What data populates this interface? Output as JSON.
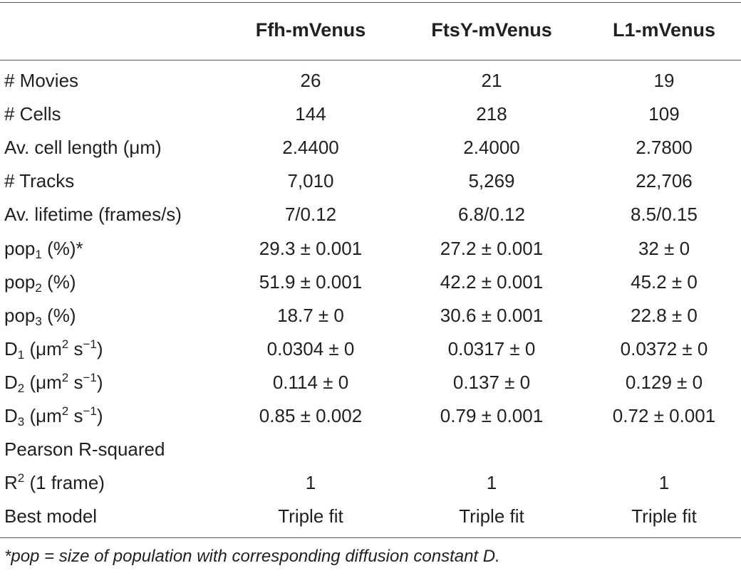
{
  "table": {
    "headers": [
      "",
      "Ffh-mVenus",
      "FtsY-mVenus",
      "L1-mVenus"
    ],
    "rows": [
      {
        "label": "# Movies",
        "values": [
          "26",
          "21",
          "19"
        ]
      },
      {
        "label": "# Cells",
        "values": [
          "144",
          "218",
          "109"
        ]
      },
      {
        "label_parts": [
          "Av. cell length (",
          "μ",
          "m)"
        ],
        "values": [
          "2.4400",
          "2.4000",
          "2.7800"
        ]
      },
      {
        "label": "# Tracks",
        "values": [
          "7,010",
          "5,269",
          "22,706"
        ]
      },
      {
        "label": "Av. lifetime (frames/s)",
        "values": [
          "7/0.12",
          "6.8/0.12",
          "8.5/0.15"
        ]
      },
      {
        "label_parts": [
          "pop",
          "1",
          " (%)*"
        ],
        "values": [
          "29.3 ± 0.001",
          "27.2 ± 0.001",
          "32 ± 0"
        ]
      },
      {
        "label_parts": [
          "pop",
          "2",
          " (%)"
        ],
        "values": [
          "51.9 ± 0.001",
          "42.2 ± 0.001",
          "45.2 ± 0"
        ]
      },
      {
        "label_parts": [
          "pop",
          "3",
          " (%)"
        ],
        "values": [
          "18.7 ± 0",
          "30.6 ± 0.001",
          "22.8 ± 0"
        ]
      },
      {
        "label_parts": [
          "D",
          "1",
          " (μm",
          "2",
          " s",
          "−1",
          ")"
        ],
        "values": [
          "0.0304 ± 0",
          "0.0317 ± 0",
          "0.0372 ± 0"
        ]
      },
      {
        "label_parts": [
          "D",
          "2",
          " (μm",
          "2",
          " s",
          "−1",
          ")"
        ],
        "values": [
          "0.114 ± 0",
          "0.137 ± 0",
          "0.129 ± 0"
        ]
      },
      {
        "label_parts": [
          "D",
          "3",
          " (μm",
          "2",
          " s",
          "−1",
          ")"
        ],
        "values": [
          "0.85 ± 0.002",
          "0.79 ± 0.001",
          "0.72 ± 0.001"
        ]
      },
      {
        "label": "Pearson R-squared",
        "values": [
          "",
          "",
          ""
        ]
      },
      {
        "label_parts": [
          "R",
          "2",
          " (1 frame)"
        ],
        "values": [
          "1",
          "1",
          "1"
        ]
      },
      {
        "label": "Best model",
        "values": [
          "Triple fit",
          "Triple fit",
          "Triple fit"
        ]
      }
    ]
  },
  "footnote": "*pop = size of population with corresponding diffusion constant D."
}
